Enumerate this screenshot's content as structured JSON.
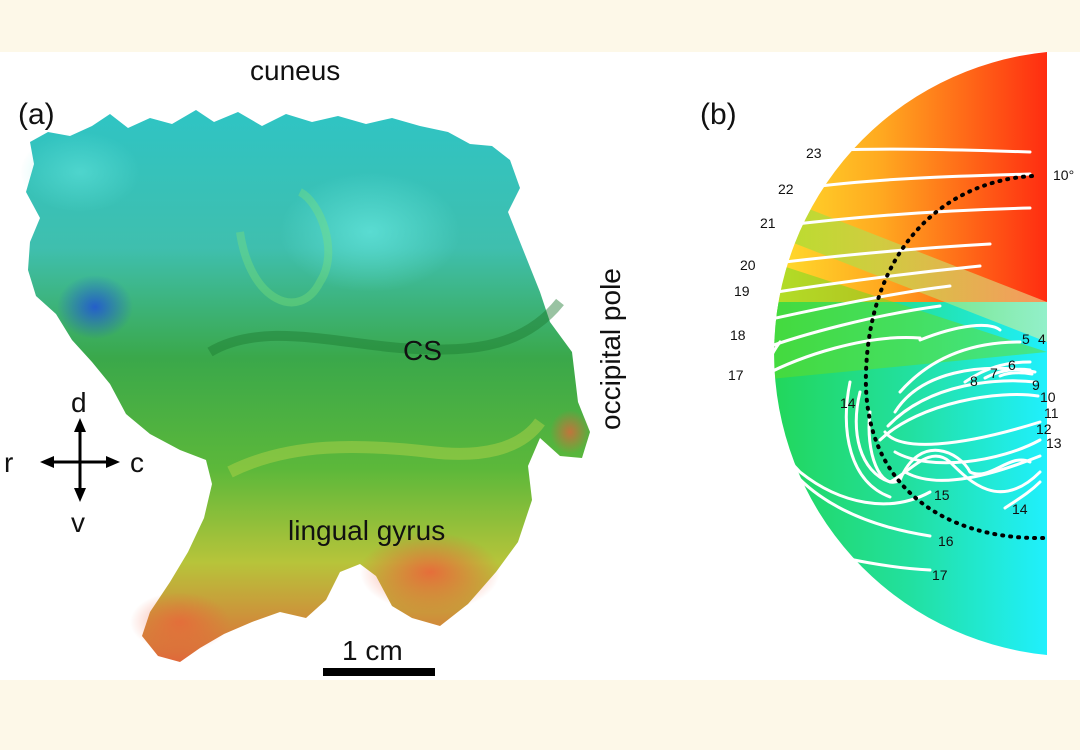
{
  "panel_a": {
    "panel_label": "(a)",
    "region_labels": {
      "cuneus": "cuneus",
      "calcarine": "CS",
      "lingual": "lingual gyrus",
      "pole": "occipital pole"
    },
    "compass": {
      "up": "d",
      "down": "v",
      "left": "r",
      "right": "c"
    },
    "scale_bar": "1 cm"
  },
  "panel_b": {
    "panel_label": "(b)",
    "eccentricity_label": "10°",
    "contour_labels": [
      "23",
      "22",
      "21",
      "20",
      "19",
      "18",
      "17",
      "5",
      "4",
      "6",
      "7",
      "8",
      "9",
      "10",
      "11",
      "12",
      "13",
      "14",
      "14",
      "15",
      "16",
      "17",
      "14"
    ]
  }
}
